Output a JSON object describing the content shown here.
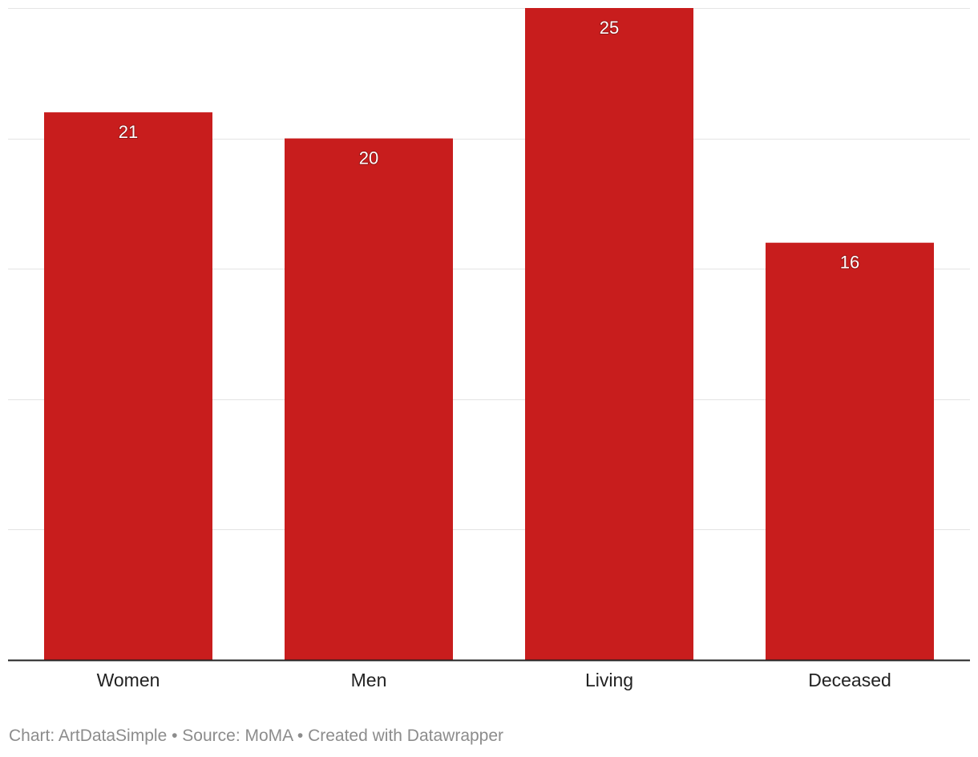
{
  "chart_data": {
    "type": "bar",
    "title": "",
    "xlabel": "",
    "ylabel": "",
    "categories": [
      "Women",
      "Men",
      "Living",
      "Deceased"
    ],
    "values": [
      21,
      20,
      25,
      16
    ],
    "ylim": [
      0,
      25
    ],
    "grid": true,
    "gridlines": [
      0,
      5,
      10,
      15,
      20,
      25
    ],
    "y_tick_labels_shown": false,
    "bar_color": "#c81d1d",
    "value_label_color": "#ffffff",
    "axis_label_color": "#222222"
  },
  "footer": {
    "credit": "Chart: ArtDataSimple",
    "separator": "•",
    "source": "Source: MoMA",
    "tool": "Created with Datawrapper"
  }
}
